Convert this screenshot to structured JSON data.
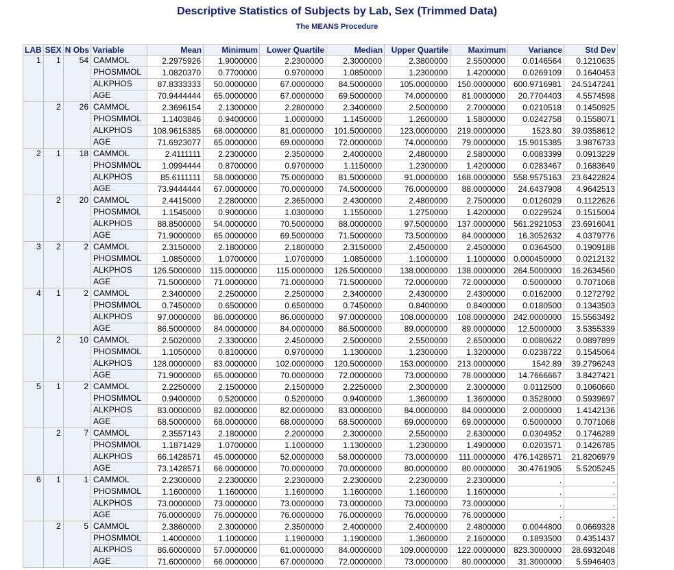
{
  "title": "Descriptive Statistics of Subjects by Lab, Sex (Trimmed Data)",
  "subtitle": "The MEANS Procedure",
  "columns": [
    "LAB",
    "SEX",
    "N Obs",
    "Variable",
    "Mean",
    "Minimum",
    "Lower Quartile",
    "Median",
    "Upper Quartile",
    "Maximum",
    "Variance",
    "Std Dev"
  ],
  "groups": [
    {
      "lab": "1",
      "sex": "1",
      "nobs": "54",
      "rows": [
        [
          "CAMMOL",
          "2.2975926",
          "1.9000000",
          "2.2300000",
          "2.3000000",
          "2.3800000",
          "2.5500000",
          "0.0146564",
          "0.1210635"
        ],
        [
          "PHOSMMOL",
          "1.0820370",
          "0.7700000",
          "0.9700000",
          "1.0850000",
          "1.2300000",
          "1.4200000",
          "0.0269109",
          "0.1640453"
        ],
        [
          "ALKPHOS",
          "87.8333333",
          "50.0000000",
          "67.0000000",
          "84.5000000",
          "105.0000000",
          "150.0000000",
          "600.9716981",
          "24.5147241"
        ],
        [
          "AGE",
          "70.9444444",
          "65.0000000",
          "67.0000000",
          "69.5000000",
          "74.0000000",
          "81.0000000",
          "20.7704403",
          "4.5574598"
        ]
      ]
    },
    {
      "lab": "",
      "sex": "2",
      "nobs": "26",
      "rows": [
        [
          "CAMMOL",
          "2.3696154",
          "2.1300000",
          "2.2800000",
          "2.3400000",
          "2.5000000",
          "2.7000000",
          "0.0210518",
          "0.1450925"
        ],
        [
          "PHOSMMOL",
          "1.1403846",
          "0.9400000",
          "1.0000000",
          "1.1450000",
          "1.2600000",
          "1.5800000",
          "0.0242758",
          "0.1558071"
        ],
        [
          "ALKPHOS",
          "108.9615385",
          "68.0000000",
          "81.0000000",
          "101.5000000",
          "123.0000000",
          "219.0000000",
          "1523.80",
          "39.0358612"
        ],
        [
          "AGE",
          "71.6923077",
          "65.0000000",
          "69.0000000",
          "72.0000000",
          "74.0000000",
          "79.0000000",
          "15.9015385",
          "3.9876733"
        ]
      ]
    },
    {
      "lab": "2",
      "sex": "1",
      "nobs": "18",
      "rows": [
        [
          "CAMMOL",
          "2.4111111",
          "2.2300000",
          "2.3500000",
          "2.4000000",
          "2.4800000",
          "2.5800000",
          "0.0083399",
          "0.0913229"
        ],
        [
          "PHOSMMOL",
          "1.0994444",
          "0.8700000",
          "0.9700000",
          "1.1150000",
          "1.2300000",
          "1.4200000",
          "0.0283467",
          "0.1683649"
        ],
        [
          "ALKPHOS",
          "85.6111111",
          "58.0000000",
          "75.0000000",
          "81.5000000",
          "91.0000000",
          "168.0000000",
          "558.9575163",
          "23.6422824"
        ],
        [
          "AGE",
          "73.9444444",
          "67.0000000",
          "70.0000000",
          "74.5000000",
          "76.0000000",
          "88.0000000",
          "24.6437908",
          "4.9642513"
        ]
      ]
    },
    {
      "lab": "",
      "sex": "2",
      "nobs": "20",
      "rows": [
        [
          "CAMMOL",
          "2.4415000",
          "2.2800000",
          "2.3650000",
          "2.4300000",
          "2.4800000",
          "2.7500000",
          "0.0126029",
          "0.1122626"
        ],
        [
          "PHOSMMOL",
          "1.1545000",
          "0.9000000",
          "1.0300000",
          "1.1550000",
          "1.2750000",
          "1.4200000",
          "0.0229524",
          "0.1515004"
        ],
        [
          "ALKPHOS",
          "88.8500000",
          "54.0000000",
          "70.5000000",
          "88.0000000",
          "97.5000000",
          "137.0000000",
          "561.2921053",
          "23.6916041"
        ],
        [
          "AGE",
          "71.9000000",
          "65.0000000",
          "69.5000000",
          "71.5000000",
          "73.5000000",
          "84.0000000",
          "16.3052632",
          "4.0379776"
        ]
      ]
    },
    {
      "lab": "3",
      "sex": "2",
      "nobs": "2",
      "rows": [
        [
          "CAMMOL",
          "2.3150000",
          "2.1800000",
          "2.1800000",
          "2.3150000",
          "2.4500000",
          "2.4500000",
          "0.0364500",
          "0.1909188"
        ],
        [
          "PHOSMMOL",
          "1.0850000",
          "1.0700000",
          "1.0700000",
          "1.0850000",
          "1.1000000",
          "1.1000000",
          "0.000450000",
          "0.0212132"
        ],
        [
          "ALKPHOS",
          "126.5000000",
          "115.0000000",
          "115.0000000",
          "126.5000000",
          "138.0000000",
          "138.0000000",
          "264.5000000",
          "16.2634560"
        ],
        [
          "AGE",
          "71.5000000",
          "71.0000000",
          "71.0000000",
          "71.5000000",
          "72.0000000",
          "72.0000000",
          "0.5000000",
          "0.7071068"
        ]
      ]
    },
    {
      "lab": "4",
      "sex": "1",
      "nobs": "2",
      "rows": [
        [
          "CAMMOL",
          "2.3400000",
          "2.2500000",
          "2.2500000",
          "2.3400000",
          "2.4300000",
          "2.4300000",
          "0.0162000",
          "0.1272792"
        ],
        [
          "PHOSMMOL",
          "0.7450000",
          "0.6500000",
          "0.6500000",
          "0.7450000",
          "0.8400000",
          "0.8400000",
          "0.0180500",
          "0.1343503"
        ],
        [
          "ALKPHOS",
          "97.0000000",
          "86.0000000",
          "86.0000000",
          "97.0000000",
          "108.0000000",
          "108.0000000",
          "242.0000000",
          "15.5563492"
        ],
        [
          "AGE",
          "86.5000000",
          "84.0000000",
          "84.0000000",
          "86.5000000",
          "89.0000000",
          "89.0000000",
          "12.5000000",
          "3.5355339"
        ]
      ]
    },
    {
      "lab": "",
      "sex": "2",
      "nobs": "10",
      "rows": [
        [
          "CAMMOL",
          "2.5020000",
          "2.3300000",
          "2.4500000",
          "2.5000000",
          "2.5500000",
          "2.6500000",
          "0.0080622",
          "0.0897899"
        ],
        [
          "PHOSMMOL",
          "1.1050000",
          "0.8100000",
          "0.9700000",
          "1.1300000",
          "1.2300000",
          "1.3200000",
          "0.0238722",
          "0.1545064"
        ],
        [
          "ALKPHOS",
          "128.0000000",
          "83.0000000",
          "102.0000000",
          "120.5000000",
          "153.0000000",
          "213.0000000",
          "1542.89",
          "39.2796243"
        ],
        [
          "AGE",
          "71.9000000",
          "65.0000000",
          "70.0000000",
          "72.0000000",
          "73.0000000",
          "78.0000000",
          "14.7666667",
          "3.8427421"
        ]
      ]
    },
    {
      "lab": "5",
      "sex": "1",
      "nobs": "2",
      "rows": [
        [
          "CAMMOL",
          "2.2250000",
          "2.1500000",
          "2.1500000",
          "2.2250000",
          "2.3000000",
          "2.3000000",
          "0.0112500",
          "0.1060660"
        ],
        [
          "PHOSMMOL",
          "0.9400000",
          "0.5200000",
          "0.5200000",
          "0.9400000",
          "1.3600000",
          "1.3600000",
          "0.3528000",
          "0.5939697"
        ],
        [
          "ALKPHOS",
          "83.0000000",
          "82.0000000",
          "82.0000000",
          "83.0000000",
          "84.0000000",
          "84.0000000",
          "2.0000000",
          "1.4142136"
        ],
        [
          "AGE",
          "68.5000000",
          "68.0000000",
          "68.0000000",
          "68.5000000",
          "69.0000000",
          "69.0000000",
          "0.5000000",
          "0.7071068"
        ]
      ]
    },
    {
      "lab": "",
      "sex": "2",
      "nobs": "7",
      "rows": [
        [
          "CAMMOL",
          "2.3557143",
          "2.1800000",
          "2.2000000",
          "2.3000000",
          "2.5500000",
          "2.6300000",
          "0.0304952",
          "0.1746289"
        ],
        [
          "PHOSMMOL",
          "1.1871429",
          "1.0700000",
          "1.1000000",
          "1.1300000",
          "1.2300000",
          "1.4900000",
          "0.0203571",
          "0.1426785"
        ],
        [
          "ALKPHOS",
          "66.1428571",
          "45.0000000",
          "52.0000000",
          "58.0000000",
          "73.0000000",
          "111.0000000",
          "476.1428571",
          "21.8206979"
        ],
        [
          "AGE",
          "73.1428571",
          "66.0000000",
          "70.0000000",
          "70.0000000",
          "80.0000000",
          "80.0000000",
          "30.4761905",
          "5.5205245"
        ]
      ]
    },
    {
      "lab": "6",
      "sex": "1",
      "nobs": "1",
      "rows": [
        [
          "CAMMOL",
          "2.2300000",
          "2.2300000",
          "2.2300000",
          "2.2300000",
          "2.2300000",
          "2.2300000",
          ".",
          "."
        ],
        [
          "PHOSMMOL",
          "1.1600000",
          "1.1600000",
          "1.1600000",
          "1.1600000",
          "1.1600000",
          "1.1600000",
          ".",
          "."
        ],
        [
          "ALKPHOS",
          "73.0000000",
          "73.0000000",
          "73.0000000",
          "73.0000000",
          "73.0000000",
          "73.0000000",
          ".",
          "."
        ],
        [
          "AGE",
          "76.0000000",
          "76.0000000",
          "76.0000000",
          "76.0000000",
          "76.0000000",
          "76.0000000",
          ".",
          "."
        ]
      ]
    },
    {
      "lab": "",
      "sex": "2",
      "nobs": "5",
      "rows": [
        [
          "CAMMOL",
          "2.3860000",
          "2.3000000",
          "2.3500000",
          "2.4000000",
          "2.4000000",
          "2.4800000",
          "0.0044800",
          "0.0669328"
        ],
        [
          "PHOSMMOL",
          "1.4000000",
          "1.1000000",
          "1.1900000",
          "1.1900000",
          "1.3600000",
          "2.1600000",
          "0.1893500",
          "0.4351437"
        ],
        [
          "ALKPHOS",
          "86.6000000",
          "57.0000000",
          "61.0000000",
          "84.0000000",
          "109.0000000",
          "122.0000000",
          "823.3000000",
          "28.6932048"
        ],
        [
          "AGE",
          "71.6000000",
          "66.0000000",
          "67.0000000",
          "72.0000000",
          "73.0000000",
          "80.0000000",
          "31.3000000",
          "5.5946403"
        ]
      ]
    }
  ]
}
